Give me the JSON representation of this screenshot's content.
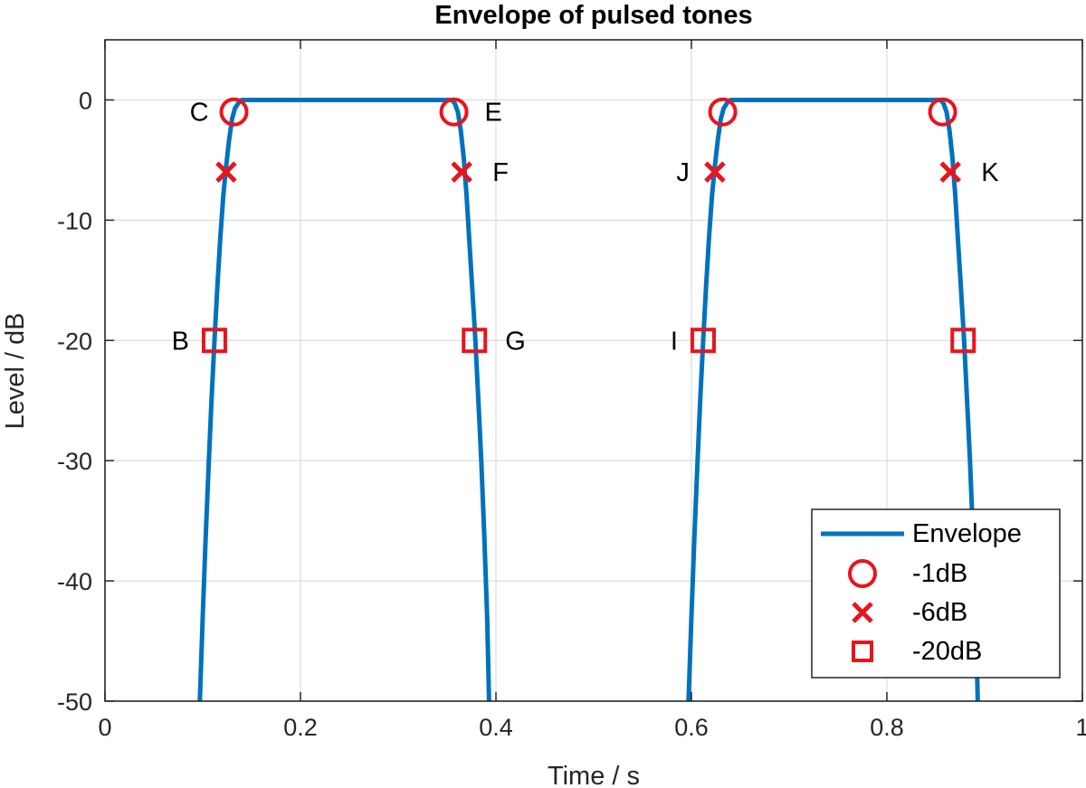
{
  "chart_data": {
    "type": "line",
    "title": "Envelope of pulsed tones",
    "xlabel": "Time / s",
    "ylabel": "Level / dB",
    "xlim": [
      0,
      1
    ],
    "ylim": [
      -50,
      5
    ],
    "xticks": [
      0,
      0.2,
      0.4,
      0.6,
      0.8,
      1
    ],
    "xtick_labels": [
      "0",
      "0.2",
      "0.4",
      "0.6",
      "0.8",
      "1"
    ],
    "yticks": [
      0,
      -10,
      -20,
      -30,
      -40,
      -50
    ],
    "ytick_labels": [
      "0",
      "-10",
      "-20",
      "-30",
      "-40",
      "-50"
    ],
    "grid": true,
    "legend_position": "bottom-right",
    "colors": {
      "envelope": "#0072BD",
      "markers": "#E8141E"
    },
    "envelope_segments": [
      {
        "x": [
          0.097,
          0.1,
          0.103,
          0.106,
          0.109,
          0.112,
          0.115,
          0.118,
          0.121,
          0.124,
          0.127,
          0.13,
          0.133,
          0.137,
          0.14,
          0.145,
          0.355,
          0.358,
          0.361,
          0.364,
          0.367,
          0.37,
          0.373,
          0.376,
          0.379,
          0.382,
          0.385,
          0.388,
          0.391,
          0.393
        ],
        "y": [
          -50,
          -43,
          -36.5,
          -30.5,
          -25,
          -20,
          -15.5,
          -11.5,
          -8,
          -5.5,
          -3.3,
          -1.6,
          -0.7,
          -0.2,
          0,
          0,
          0,
          -0.3,
          -1,
          -2.5,
          -4.8,
          -8,
          -12,
          -16,
          -20,
          -25,
          -30,
          -36,
          -43,
          -50
        ]
      },
      {
        "x": [
          0.597,
          0.6,
          0.603,
          0.606,
          0.609,
          0.612,
          0.615,
          0.618,
          0.621,
          0.624,
          0.627,
          0.63,
          0.633,
          0.637,
          0.64,
          0.645,
          0.855,
          0.858,
          0.861,
          0.864,
          0.867,
          0.87,
          0.873,
          0.876,
          0.879,
          0.882,
          0.885,
          0.888,
          0.891,
          0.893
        ],
        "y": [
          -50,
          -43,
          -36.5,
          -30.5,
          -25,
          -20,
          -15.5,
          -11.5,
          -8,
          -5.5,
          -3.3,
          -1.6,
          -0.7,
          -0.2,
          0,
          0,
          0,
          -0.3,
          -1,
          -2.5,
          -4.8,
          -8,
          -12,
          -16,
          -20,
          -25,
          -30,
          -36,
          -43,
          -50
        ]
      }
    ],
    "series": [
      {
        "name": "Envelope",
        "kind": "line"
      },
      {
        "name": "-1dB",
        "kind": "circle",
        "points": [
          {
            "x": 0.132,
            "y": -1,
            "label": "C",
            "side": "left"
          },
          {
            "x": 0.357,
            "y": -1,
            "label": "E",
            "side": "right"
          },
          {
            "x": 0.632,
            "y": -1,
            "label": "",
            "side": "left"
          },
          {
            "x": 0.857,
            "y": -1,
            "label": "",
            "side": "right"
          }
        ]
      },
      {
        "name": "-6dB",
        "kind": "cross",
        "points": [
          {
            "x": 0.124,
            "y": -6,
            "label": "",
            "side": "left"
          },
          {
            "x": 0.365,
            "y": -6,
            "label": "F",
            "side": "right"
          },
          {
            "x": 0.624,
            "y": -6,
            "label": "J",
            "side": "left"
          },
          {
            "x": 0.865,
            "y": -6,
            "label": "K",
            "side": "right"
          }
        ]
      },
      {
        "name": "-20dB",
        "kind": "square",
        "points": [
          {
            "x": 0.112,
            "y": -20,
            "label": "B",
            "side": "left"
          },
          {
            "x": 0.378,
            "y": -20,
            "label": "G",
            "side": "right"
          },
          {
            "x": 0.612,
            "y": -20,
            "label": "I",
            "side": "left"
          },
          {
            "x": 0.878,
            "y": -20,
            "label": "",
            "side": "right"
          }
        ]
      }
    ]
  }
}
